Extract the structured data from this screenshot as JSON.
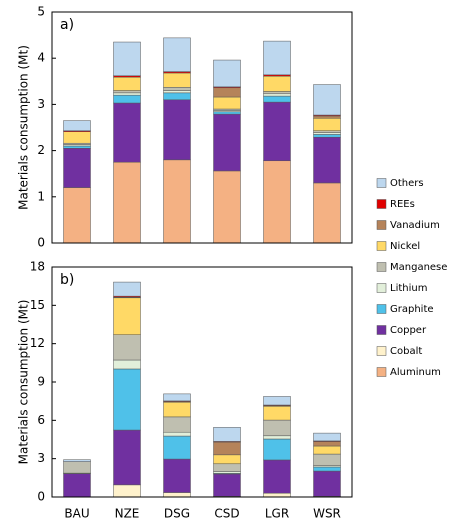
{
  "chart_data": [
    {
      "type": "stacked-bar",
      "title": "a)",
      "y_label": "Materials consumption (Mt)",
      "ylim": [
        0,
        5
      ],
      "yticks": [
        0,
        1,
        2,
        3,
        4,
        5
      ],
      "series": [
        {
          "name": "Aluminum",
          "color": "#f4b183",
          "values": [
            1.2,
            1.75,
            1.8,
            1.56,
            1.78,
            1.3
          ]
        },
        {
          "name": "Cobalt",
          "color": "#fff2cc",
          "values": [
            0,
            0,
            0,
            0,
            0,
            0
          ]
        },
        {
          "name": "Copper",
          "color": "#7030a0",
          "values": [
            0.85,
            1.28,
            1.3,
            1.23,
            1.27,
            0.99
          ]
        },
        {
          "name": "Graphite",
          "color": "#4fc1e9",
          "values": [
            0.05,
            0.17,
            0.15,
            0.05,
            0.13,
            0.06
          ]
        },
        {
          "name": "Lithium",
          "color": "#e2efda",
          "values": [
            0.03,
            0.05,
            0.05,
            0.03,
            0.05,
            0.04
          ]
        },
        {
          "name": "Manganese",
          "color": "#bfbfb0",
          "values": [
            0.03,
            0.05,
            0.07,
            0.03,
            0.05,
            0.04
          ]
        },
        {
          "name": "Nickel",
          "color": "#ffd966",
          "values": [
            0.25,
            0.29,
            0.31,
            0.26,
            0.33,
            0.27
          ]
        },
        {
          "name": "Vanadium",
          "color": "#b5835a",
          "values": [
            0,
            0,
            0,
            0.2,
            0,
            0.05
          ]
        },
        {
          "name": "REEs",
          "color": "#e00000",
          "values": [
            0.02,
            0.03,
            0.03,
            0.02,
            0.03,
            0.02
          ]
        },
        {
          "name": "Others",
          "color": "#bdd7ee",
          "values": [
            0.22,
            0.73,
            0.73,
            0.58,
            0.73,
            0.66
          ]
        }
      ]
    },
    {
      "type": "stacked-bar",
      "title": "b)",
      "y_label": "Materials consumption (Mt)",
      "categories": [
        "BAU",
        "NZE",
        "DSG",
        "CSD",
        "LGR",
        "WSR"
      ],
      "ylim": [
        0,
        18
      ],
      "yticks": [
        0,
        3,
        6,
        9,
        12,
        15,
        18
      ],
      "series": [
        {
          "color": "#f4b183",
          "values": [
            0,
            0,
            0,
            0,
            0,
            0
          ]
        },
        {
          "color": "#fff2cc",
          "values": [
            0.02,
            0.95,
            0.35,
            0.05,
            0.3,
            0.05
          ]
        },
        {
          "color": "#7030a0",
          "values": [
            1.8,
            4.29,
            2.62,
            1.75,
            2.6,
            1.98
          ]
        },
        {
          "color": "#4fc1e9",
          "values": [
            0,
            4.78,
            1.8,
            0.05,
            1.64,
            0.32
          ]
        },
        {
          "color": "#e2efda",
          "values": [
            0.05,
            0.7,
            0.3,
            0.15,
            0.25,
            0.1
          ]
        },
        {
          "color": "#bfbfb0",
          "values": [
            0.9,
            1.98,
            1.2,
            0.6,
            1.23,
            0.91
          ]
        },
        {
          "color": "#ffd966",
          "values": [
            0,
            2.89,
            1.15,
            0.7,
            1.08,
            0.63
          ]
        },
        {
          "color": "#b5835a",
          "values": [
            0,
            0.05,
            0.05,
            1.0,
            0.05,
            0.35
          ]
        },
        {
          "color": "#e00000",
          "values": [
            0,
            0.08,
            0.05,
            0.05,
            0.05,
            0.05
          ]
        },
        {
          "color": "#bdd7ee",
          "values": [
            0.15,
            1.1,
            0.55,
            1.1,
            0.67,
            0.61
          ]
        }
      ]
    }
  ]
}
